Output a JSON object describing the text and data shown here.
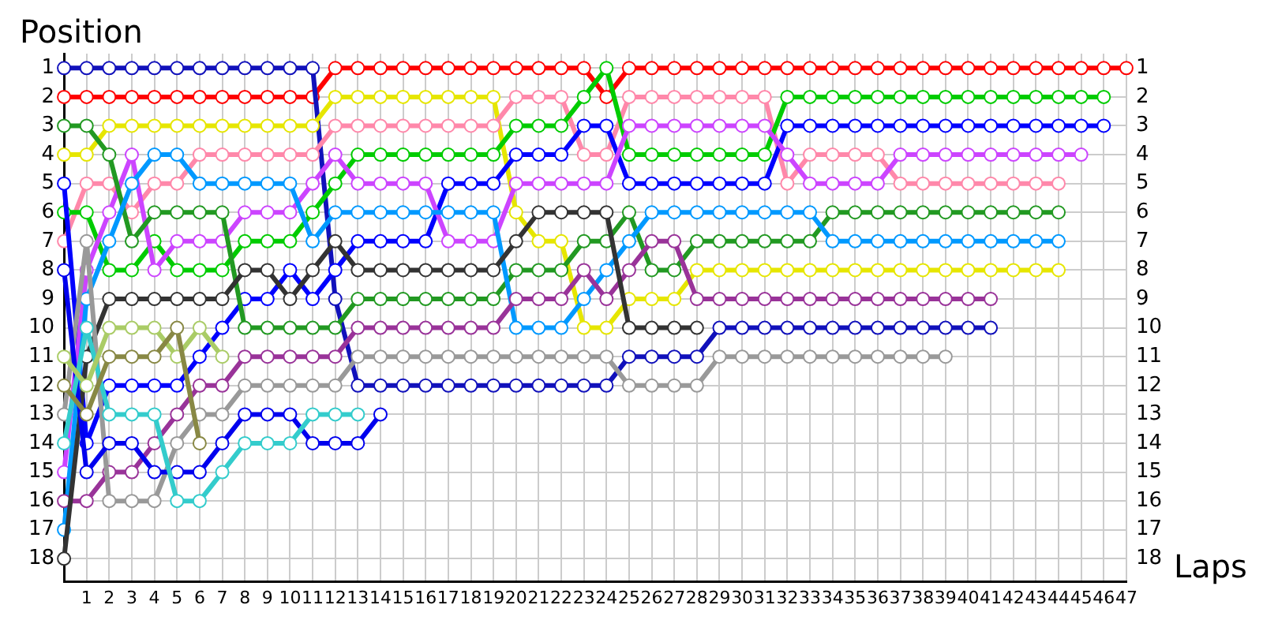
{
  "chart_data": {
    "type": "line",
    "xlabel": "Laps",
    "ylabel": "Position",
    "x": [
      0,
      1,
      2,
      3,
      4,
      5,
      6,
      7,
      8,
      9,
      10,
      11,
      12,
      13,
      14,
      15,
      16,
      17,
      18,
      19,
      20,
      21,
      22,
      23,
      24,
      25,
      26,
      27,
      28,
      29,
      30,
      31,
      32,
      33,
      34,
      35,
      36,
      37,
      38,
      39,
      40,
      41,
      42,
      43,
      44,
      45,
      46,
      47
    ],
    "xlim": [
      0,
      47
    ],
    "xticks": [
      1,
      2,
      3,
      4,
      5,
      6,
      7,
      8,
      9,
      10,
      11,
      12,
      13,
      14,
      15,
      16,
      17,
      18,
      19,
      20,
      21,
      22,
      23,
      24,
      25,
      26,
      27,
      28,
      29,
      30,
      31,
      32,
      33,
      34,
      35,
      36,
      37,
      38,
      39,
      40,
      41,
      42,
      43,
      44,
      45,
      46,
      47
    ],
    "ylim": [
      18.8,
      0.5
    ],
    "yticks": [
      1,
      2,
      3,
      4,
      5,
      6,
      7,
      8,
      9,
      10,
      11,
      12,
      13,
      14,
      15,
      16,
      17,
      18
    ],
    "y2lim": [
      18.8,
      0.5
    ],
    "y2ticks": [
      1,
      2,
      3,
      4,
      5,
      6,
      7,
      8,
      9,
      10,
      11,
      12,
      13,
      14,
      15,
      16,
      17,
      18
    ],
    "grid": true,
    "legend": false,
    "marker": "circle",
    "line_style": "solid",
    "series": [
      {
        "color": "#ff0000",
        "values": [
          2,
          2,
          2,
          2,
          2,
          2,
          2,
          2,
          2,
          2,
          2,
          2,
          1,
          1,
          1,
          1,
          1,
          1,
          1,
          1,
          1,
          1,
          1,
          1,
          2,
          1,
          1,
          1,
          1,
          1,
          1,
          1,
          1,
          1,
          1,
          1,
          1,
          1,
          1,
          1,
          1,
          1,
          1,
          1,
          1,
          1,
          1,
          1
        ]
      },
      {
        "color": "#1111bb",
        "values": [
          1,
          1,
          1,
          1,
          1,
          1,
          1,
          1,
          1,
          1,
          1,
          1,
          9,
          12,
          12,
          12,
          12,
          12,
          12,
          12,
          12,
          12,
          12,
          12,
          12,
          11,
          11,
          11,
          11,
          10,
          10,
          10,
          10,
          10,
          10,
          10,
          10,
          10,
          10,
          10,
          10,
          10,
          null,
          null,
          null,
          null,
          null,
          null
        ]
      },
      {
        "color": "#e6e600",
        "values": [
          4,
          4,
          3,
          3,
          3,
          3,
          3,
          3,
          3,
          3,
          3,
          3,
          2,
          2,
          2,
          2,
          2,
          2,
          2,
          2,
          6,
          7,
          7,
          10,
          10,
          9,
          9,
          9,
          8,
          8,
          8,
          8,
          8,
          8,
          8,
          8,
          8,
          8,
          8,
          8,
          8,
          8,
          8,
          8,
          8,
          null,
          null,
          null
        ]
      },
      {
        "color": "#ff88aa",
        "values": [
          7,
          5,
          5,
          6,
          5,
          5,
          4,
          4,
          4,
          4,
          4,
          4,
          3,
          3,
          3,
          3,
          3,
          3,
          3,
          3,
          2,
          2,
          2,
          4,
          4,
          2,
          2,
          2,
          2,
          2,
          2,
          2,
          5,
          4,
          4,
          4,
          4,
          5,
          5,
          5,
          5,
          5,
          5,
          5,
          5,
          null,
          null,
          null
        ]
      },
      {
        "color": "#00cc00",
        "values": [
          6,
          6,
          8,
          8,
          7,
          8,
          8,
          8,
          7,
          7,
          7,
          6,
          5,
          4,
          4,
          4,
          4,
          4,
          4,
          4,
          3,
          3,
          3,
          2,
          1,
          4,
          4,
          4,
          4,
          4,
          4,
          4,
          2,
          2,
          2,
          2,
          2,
          2,
          2,
          2,
          2,
          2,
          2,
          2,
          2,
          2,
          2,
          null
        ]
      },
      {
        "color": "#0000ff",
        "values": [
          5,
          14,
          12,
          12,
          12,
          12,
          11,
          10,
          9,
          9,
          8,
          9,
          8,
          7,
          7,
          7,
          7,
          5,
          5,
          5,
          4,
          4,
          4,
          3,
          3,
          5,
          5,
          5,
          5,
          5,
          5,
          5,
          3,
          3,
          3,
          3,
          3,
          3,
          3,
          3,
          3,
          3,
          3,
          3,
          3,
          3,
          3,
          null
        ]
      },
      {
        "color": "#cc44ff",
        "values": [
          15,
          8,
          6,
          4,
          8,
          7,
          7,
          7,
          6,
          6,
          6,
          5,
          4,
          5,
          5,
          5,
          5,
          7,
          7,
          7,
          5,
          5,
          5,
          5,
          5,
          3,
          3,
          3,
          3,
          3,
          3,
          3,
          4,
          5,
          5,
          5,
          5,
          4,
          4,
          4,
          4,
          4,
          4,
          4,
          4,
          4,
          null,
          null
        ]
      },
      {
        "color": "#229922",
        "values": [
          3,
          3,
          4,
          7,
          6,
          6,
          6,
          6,
          10,
          10,
          10,
          10,
          10,
          9,
          9,
          9,
          9,
          9,
          9,
          9,
          8,
          8,
          8,
          7,
          7,
          6,
          8,
          8,
          7,
          7,
          7,
          7,
          7,
          7,
          6,
          6,
          6,
          6,
          6,
          6,
          6,
          6,
          6,
          6,
          6,
          null,
          null,
          null
        ]
      },
      {
        "color": "#0099ff",
        "values": [
          17,
          9,
          7,
          5,
          4,
          4,
          5,
          5,
          5,
          5,
          5,
          7,
          6,
          6,
          6,
          6,
          6,
          6,
          6,
          6,
          10,
          10,
          10,
          9,
          8,
          7,
          6,
          6,
          6,
          6,
          6,
          6,
          6,
          6,
          7,
          7,
          7,
          7,
          7,
          7,
          7,
          7,
          7,
          7,
          7,
          null,
          null,
          null
        ]
      },
      {
        "color": "#993399",
        "values": [
          16,
          16,
          15,
          15,
          14,
          13,
          12,
          12,
          11,
          11,
          11,
          11,
          11,
          10,
          10,
          10,
          10,
          10,
          10,
          10,
          9,
          9,
          9,
          8,
          9,
          8,
          7,
          7,
          9,
          9,
          9,
          9,
          9,
          9,
          9,
          9,
          9,
          9,
          9,
          9,
          9,
          9,
          null,
          null,
          null,
          null,
          null,
          null
        ]
      },
      {
        "color": "#333333",
        "values": [
          18,
          11,
          9,
          9,
          9,
          9,
          9,
          9,
          8,
          8,
          9,
          8,
          7,
          8,
          8,
          8,
          8,
          8,
          8,
          8,
          7,
          6,
          6,
          6,
          6,
          10,
          10,
          10,
          10,
          null,
          null,
          null,
          null,
          null,
          null,
          null,
          null,
          null,
          null,
          null,
          null,
          null,
          null,
          null,
          null,
          null,
          null,
          null
        ]
      },
      {
        "color": "#999999",
        "values": [
          13,
          7,
          16,
          16,
          16,
          14,
          13,
          13,
          12,
          12,
          12,
          12,
          12,
          11,
          11,
          11,
          11,
          11,
          11,
          11,
          11,
          11,
          11,
          11,
          11,
          12,
          12,
          12,
          12,
          11,
          11,
          11,
          11,
          11,
          11,
          11,
          11,
          11,
          11,
          11,
          null,
          null,
          null,
          null,
          null,
          null,
          null,
          null
        ]
      },
      {
        "color": "#0000ee",
        "values": [
          8,
          15,
          14,
          14,
          15,
          15,
          15,
          14,
          13,
          13,
          13,
          14,
          14,
          14,
          13,
          null,
          null,
          null,
          null,
          null,
          null,
          null,
          null,
          null,
          null,
          null,
          null,
          null,
          null,
          null,
          null,
          null,
          null,
          null,
          null,
          null,
          null,
          null,
          null,
          null,
          null,
          null,
          null,
          null,
          null,
          null,
          null,
          null
        ]
      },
      {
        "color": "#33cccc",
        "values": [
          14,
          10,
          13,
          13,
          13,
          16,
          16,
          15,
          14,
          14,
          14,
          13,
          13,
          13,
          null,
          null,
          null,
          null,
          null,
          null,
          null,
          null,
          null,
          null,
          null,
          null,
          null,
          null,
          null,
          null,
          null,
          null,
          null,
          null,
          null,
          null,
          null,
          null,
          null,
          null,
          null,
          null,
          null,
          null,
          null,
          null,
          null,
          null
        ]
      },
      {
        "color": "#aacc66",
        "values": [
          11,
          12,
          10,
          10,
          10,
          11,
          10,
          11,
          null,
          null,
          null,
          null,
          null,
          null,
          null,
          null,
          null,
          null,
          null,
          null,
          null,
          null,
          null,
          null,
          null,
          null,
          null,
          null,
          null,
          null,
          null,
          null,
          null,
          null,
          null,
          null,
          null,
          null,
          null,
          null,
          null,
          null,
          null,
          null,
          null,
          null,
          null,
          null
        ]
      },
      {
        "color": "#888844",
        "values": [
          12,
          13,
          11,
          11,
          11,
          10,
          14,
          null,
          null,
          null,
          null,
          null,
          null,
          null,
          null,
          null,
          null,
          null,
          null,
          null,
          null,
          null,
          null,
          null,
          null,
          null,
          null,
          null,
          null,
          null,
          null,
          null,
          null,
          null,
          null,
          null,
          null,
          null,
          null,
          null,
          null,
          null,
          null,
          null,
          null,
          null,
          null,
          null
        ]
      }
    ]
  }
}
